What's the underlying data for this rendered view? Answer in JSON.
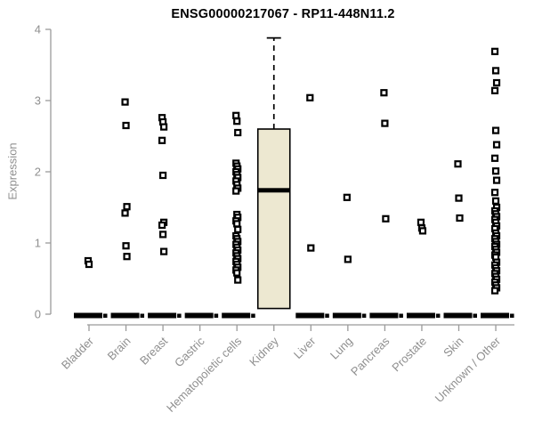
{
  "chart_data": {
    "type": "boxplot",
    "title": "ENSG00000217067 - RP11-448N11.2",
    "ylabel": "Expression",
    "xlabel": "",
    "ylim": [
      0,
      4
    ],
    "yticks": [
      0,
      1,
      2,
      3,
      4
    ],
    "grid": false,
    "legend": "none",
    "categories": [
      "Bladder",
      "Brain",
      "Breast",
      "Gastric",
      "Hematopoietic cells",
      "Kidney",
      "Liver",
      "Lung",
      "Pancreas",
      "Prostate",
      "Skin",
      "Unknown / Other"
    ],
    "groups": [
      {
        "name": "Bladder",
        "median": 0,
        "outliers": [
          0.75,
          0.7
        ]
      },
      {
        "name": "Brain",
        "median": 0,
        "outliers": [
          2.98,
          2.65,
          1.51,
          1.42,
          0.96,
          0.81
        ]
      },
      {
        "name": "Breast",
        "median": 0,
        "outliers": [
          2.76,
          2.7,
          2.63,
          2.44,
          1.95,
          1.29,
          1.25,
          1.12,
          0.88
        ]
      },
      {
        "name": "Gastric",
        "median": 0,
        "outliers": []
      },
      {
        "name": "Hematopoietic cells",
        "median": 0,
        "outliers": [
          2.79,
          2.71,
          2.55,
          2.12,
          2.08,
          2.04,
          2.0,
          1.96,
          1.92,
          1.87,
          1.82,
          1.77,
          1.73,
          1.4,
          1.36,
          1.31,
          1.27,
          1.19,
          1.1,
          1.06,
          1.02,
          0.98,
          0.94,
          0.9,
          0.86,
          0.82,
          0.78,
          0.74,
          0.7,
          0.66,
          0.62,
          0.58,
          0.48
        ]
      },
      {
        "name": "Kidney",
        "box": {
          "whisker_high": 3.88,
          "q3": 2.6,
          "median": 1.74,
          "q1": 0.08
        },
        "outliers": []
      },
      {
        "name": "Liver",
        "median": 0,
        "outliers": [
          3.04,
          0.93
        ]
      },
      {
        "name": "Lung",
        "median": 0,
        "outliers": [
          1.64,
          0.77
        ]
      },
      {
        "name": "Pancreas",
        "median": 0,
        "outliers": [
          3.11,
          2.68,
          1.34
        ]
      },
      {
        "name": "Prostate",
        "median": 0,
        "outliers": [
          1.29,
          1.21,
          1.17
        ]
      },
      {
        "name": "Skin",
        "median": 0,
        "outliers": [
          2.11,
          1.63,
          1.35
        ]
      },
      {
        "name": "Unknown / Other",
        "median": 0,
        "outliers": [
          3.69,
          3.42,
          3.25,
          3.14,
          2.58,
          2.38,
          2.19,
          2.01,
          1.88,
          1.71,
          1.59,
          1.5,
          1.45,
          1.41,
          1.37,
          1.33,
          1.29,
          1.24,
          1.2,
          1.14,
          1.1,
          1.06,
          1.02,
          0.98,
          0.95,
          0.91,
          0.87,
          0.83,
          0.8,
          0.73,
          0.69,
          0.65,
          0.61,
          0.57,
          0.53,
          0.49,
          0.45,
          0.41,
          0.37,
          0.33
        ]
      }
    ],
    "colors": {
      "box_fill": "#EDE8D1",
      "box_stroke": "#000000",
      "point": "#000000",
      "zero_bar": "#000000",
      "axis": "#9A9A9A",
      "tick_label": "#8F8F8F",
      "title": "#000000",
      "background": "#FFFFFF"
    }
  }
}
